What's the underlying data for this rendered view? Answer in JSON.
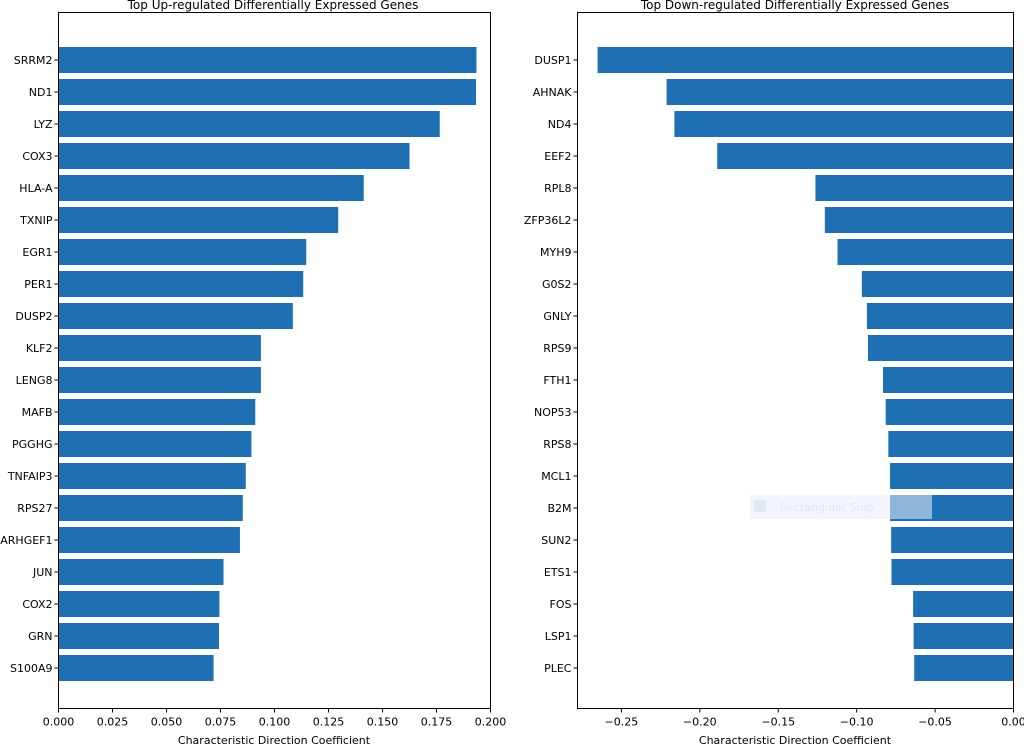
{
  "colors": {
    "bar": "#1f6fb3",
    "axis": "#000000"
  },
  "chart_data": [
    {
      "type": "bar",
      "orientation": "horizontal",
      "title": "Top Up-regulated Differentially Expressed Genes",
      "xlabel": "Characteristic Direction Coefficient",
      "ylabel": "",
      "xlim": [
        0.0,
        0.2
      ],
      "xticks": [
        0.0,
        0.025,
        0.05,
        0.075,
        0.1,
        0.125,
        0.15,
        0.175,
        0.2
      ],
      "xtick_labels": [
        "0.000",
        "0.025",
        "0.050",
        "0.075",
        "0.100",
        "0.125",
        "0.150",
        "0.175",
        "0.200"
      ],
      "categories": [
        "SRRM2",
        "ND1",
        "LYZ",
        "COX3",
        "HLA-A",
        "TXNIP",
        "EGR1",
        "PER1",
        "DUSP2",
        "KLF2",
        "LENG8",
        "MAFB",
        "PGGHG",
        "TNFAIP3",
        "RPS27",
        "ARHGEF1",
        "JUN",
        "COX2",
        "GRN",
        "S100A9"
      ],
      "values": [
        0.1935,
        0.1933,
        0.1765,
        0.1625,
        0.1413,
        0.1295,
        0.1147,
        0.1133,
        0.1085,
        0.0937,
        0.0937,
        0.0911,
        0.0893,
        0.0867,
        0.0853,
        0.084,
        0.0764,
        0.0745,
        0.0743,
        0.0718
      ],
      "grid": false,
      "legend": "none"
    },
    {
      "type": "bar",
      "orientation": "horizontal",
      "title": "Top Down-regulated Differentially Expressed Genes",
      "xlabel": "Characteristic Direction Coefficient",
      "ylabel": "",
      "xlim": [
        -0.278,
        0.0
      ],
      "xticks": [
        -0.25,
        -0.2,
        -0.15,
        -0.1,
        -0.05,
        0.0
      ],
      "xtick_labels": [
        "−0.25",
        "−0.20",
        "−0.15",
        "−0.10",
        "−0.05",
        "0.00"
      ],
      "categories": [
        "DUSP1",
        "AHNAK",
        "ND4",
        "EEF2",
        "RPL8",
        "ZFP36L2",
        "MYH9",
        "G0S2",
        "GNLY",
        "RPS9",
        "FTH1",
        "NOP53",
        "RPS8",
        "MCL1",
        "B2M",
        "SUN2",
        "ETS1",
        "FOS",
        "LSP1",
        "PLEC"
      ],
      "values": [
        -0.2652,
        -0.2212,
        -0.2162,
        -0.1889,
        -0.1263,
        -0.1203,
        -0.1122,
        -0.0967,
        -0.0935,
        -0.0928,
        -0.0832,
        -0.0815,
        -0.0798,
        -0.0787,
        -0.0787,
        -0.078,
        -0.0778,
        -0.064,
        -0.0637,
        -0.0633
      ],
      "grid": false,
      "legend": "none"
    }
  ],
  "overlay": {
    "label": "Rectangular Snip"
  }
}
